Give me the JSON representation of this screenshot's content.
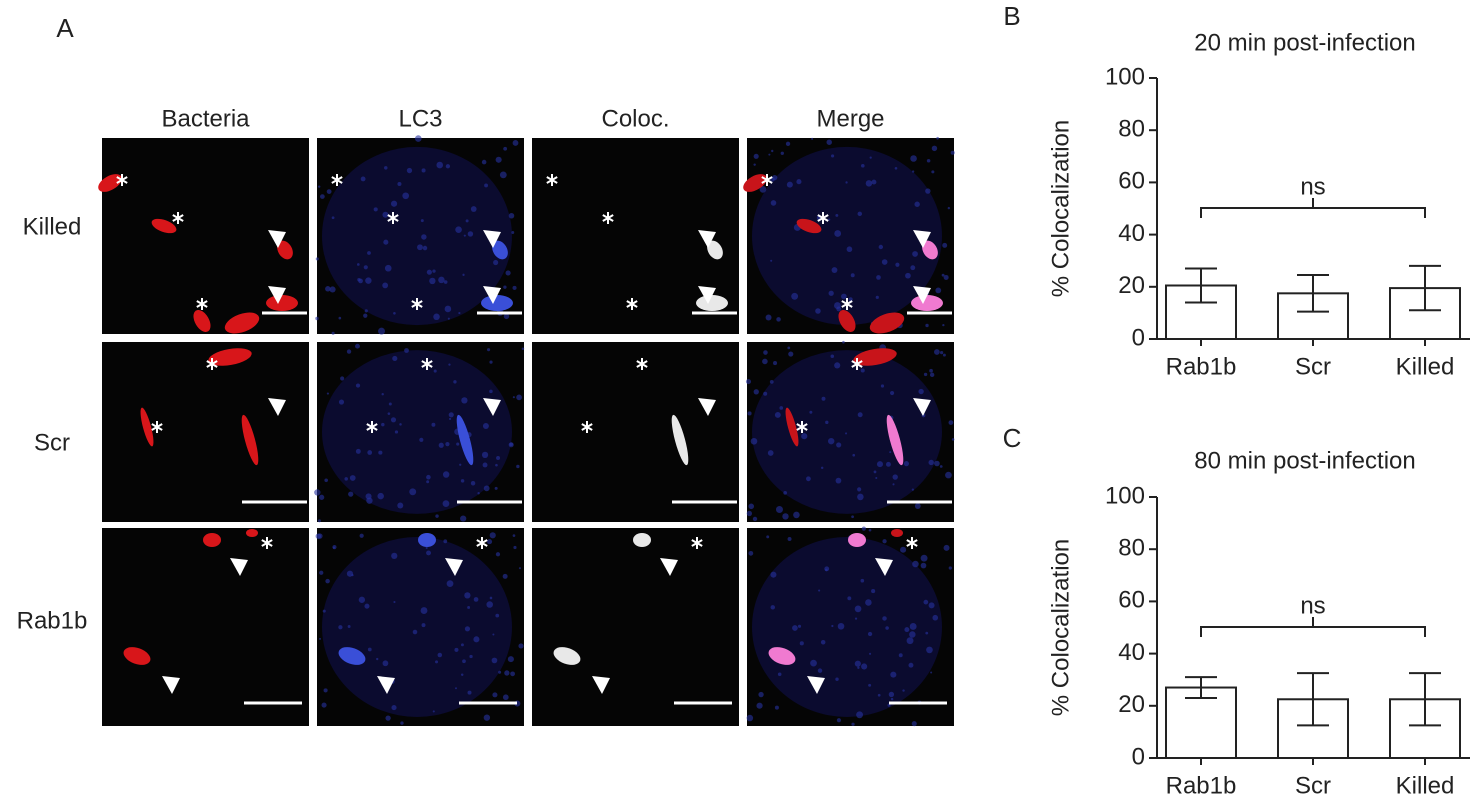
{
  "panel_a": {
    "letter": "A",
    "columns": [
      "Bacteria",
      "LC3",
      "Coloc.",
      "Merge"
    ],
    "rows": [
      "Killed",
      "Scr",
      "Rab1b"
    ]
  },
  "chart_data": [
    {
      "type": "bar",
      "letter": "B",
      "title": "20 min post-infection",
      "y_label": "% Colocalization",
      "categories": [
        "Rab1b",
        "Scr",
        "Killed"
      ],
      "values": [
        20.5,
        17.5,
        19.5
      ],
      "errors": [
        6.5,
        7,
        8.5
      ],
      "color": "#ffffff",
      "ylim": [
        0,
        100
      ],
      "yticks": [
        0,
        20,
        40,
        60,
        80,
        100
      ],
      "annotation": "ns"
    },
    {
      "type": "bar",
      "letter": "C",
      "title": "80 min post-infection",
      "y_label": "% Colocalization",
      "categories": [
        "Rab1b",
        "Scr",
        "Killed"
      ],
      "values": [
        27,
        22.5,
        22.5
      ],
      "errors": [
        4,
        10,
        10
      ],
      "color": "#ffffff",
      "ylim": [
        0,
        100
      ],
      "yticks": [
        0,
        20,
        40,
        60,
        80,
        100
      ],
      "annotation": "ns"
    }
  ]
}
